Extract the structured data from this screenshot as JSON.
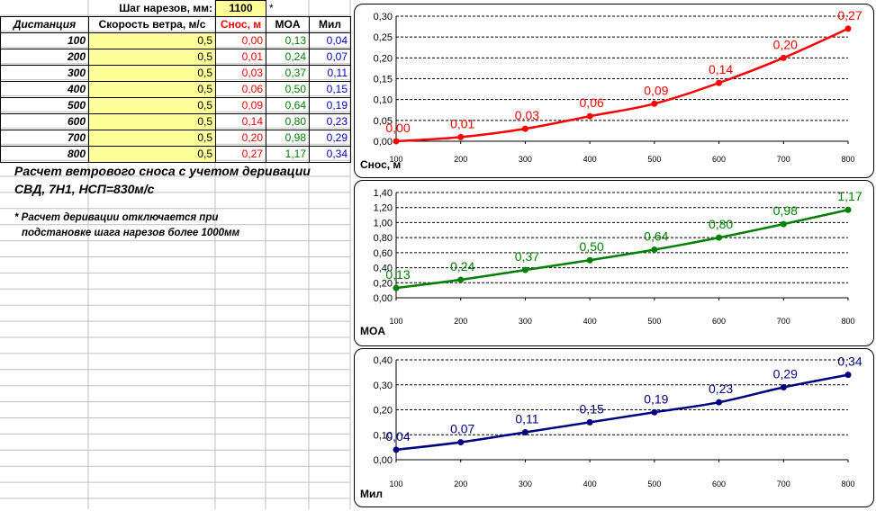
{
  "sheet": {
    "twist_label": "Шаг нарезов, мм:",
    "twist_value": "1100",
    "twist_mark": "*",
    "headers": [
      "Дистанция",
      "Скорость ветра, м/с",
      "Снос, м",
      "MOA",
      "Мил"
    ],
    "rows": [
      {
        "dist": "100",
        "speed": "0,5",
        "snos": "0,00",
        "moa": "0,13",
        "mil": "0,04"
      },
      {
        "dist": "200",
        "speed": "0,5",
        "snos": "0,01",
        "moa": "0,24",
        "mil": "0,07"
      },
      {
        "dist": "300",
        "speed": "0,5",
        "snos": "0,03",
        "moa": "0,37",
        "mil": "0,11"
      },
      {
        "dist": "400",
        "speed": "0,5",
        "snos": "0,06",
        "moa": "0,50",
        "mil": "0,15"
      },
      {
        "dist": "500",
        "speed": "0,5",
        "snos": "0,09",
        "moa": "0,64",
        "mil": "0,19"
      },
      {
        "dist": "600",
        "speed": "0,5",
        "snos": "0,14",
        "moa": "0,80",
        "mil": "0,23"
      },
      {
        "dist": "700",
        "speed": "0,5",
        "snos": "0,20",
        "moa": "0,98",
        "mil": "0,29"
      },
      {
        "dist": "800",
        "speed": "0,5",
        "snos": "0,27",
        "moa": "1,17",
        "mil": "0,34"
      }
    ],
    "note_line1": "Расчет ветрового сноса с учетом деривации",
    "note_line2": "СВД, 7Н1, НСП=830м/с",
    "footnote_line1": "* Расчет деривации отключается при",
    "footnote_line2": "подстановке шага нарезов более 1000мм"
  },
  "colors": {
    "snos": "#ff0000",
    "moa": "#008000",
    "mil": "#0000cc",
    "input_fill": "#ffff99"
  },
  "chart_data": [
    {
      "type": "line",
      "x": [
        100,
        200,
        300,
        400,
        500,
        600,
        700,
        800
      ],
      "values": [
        0.0,
        0.01,
        0.03,
        0.06,
        0.09,
        0.14,
        0.2,
        0.27
      ],
      "labels": [
        "0,00",
        "0,01",
        "0,03",
        "0,06",
        "0,09",
        "0,14",
        "0,20",
        "0,27"
      ],
      "yticks": [
        "0,00",
        "0,05",
        "0,10",
        "0,15",
        "0,20",
        "0,25",
        "0,30"
      ],
      "xticks": [
        "100",
        "200",
        "300",
        "400",
        "500",
        "600",
        "700",
        "800"
      ],
      "ylim": [
        0,
        0.3
      ],
      "ylabel": "Снос, м",
      "color": "#ff0000",
      "grid": true
    },
    {
      "type": "line",
      "x": [
        100,
        200,
        300,
        400,
        500,
        600,
        700,
        800
      ],
      "values": [
        0.13,
        0.24,
        0.37,
        0.5,
        0.64,
        0.8,
        0.98,
        1.17
      ],
      "labels": [
        "0,13",
        "0,24",
        "0,37",
        "0,50",
        "0,64",
        "0,80",
        "0,98",
        "1,17"
      ],
      "yticks": [
        "0,00",
        "0,20",
        "0,40",
        "0,60",
        "0,80",
        "1,00",
        "1,20",
        "1,40"
      ],
      "xticks": [
        "100",
        "200",
        "300",
        "400",
        "500",
        "600",
        "700",
        "800"
      ],
      "ylim": [
        0,
        1.4
      ],
      "ylabel": "MOA",
      "color": "#008000",
      "grid": true
    },
    {
      "type": "line",
      "x": [
        100,
        200,
        300,
        400,
        500,
        600,
        700,
        800
      ],
      "values": [
        0.04,
        0.07,
        0.11,
        0.15,
        0.19,
        0.23,
        0.29,
        0.34
      ],
      "labels": [
        "0,04",
        "0,07",
        "0,11",
        "0,15",
        "0,19",
        "0,23",
        "0,29",
        "0,34"
      ],
      "yticks": [
        "0,00",
        "0,10",
        "0,20",
        "0,30",
        "0,40"
      ],
      "xticks": [
        "100",
        "200",
        "300",
        "400",
        "500",
        "600",
        "700",
        "800"
      ],
      "ylim": [
        0,
        0.4
      ],
      "ylabel": "Мил",
      "color": "#000080",
      "grid": true
    }
  ]
}
